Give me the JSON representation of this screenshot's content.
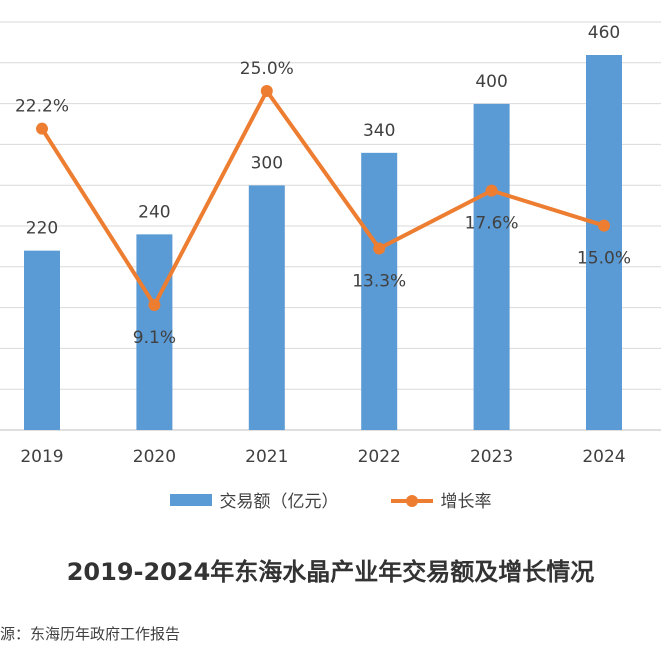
{
  "chart_data": {
    "type": "bar+line",
    "categories": [
      "2019",
      "2020",
      "2021",
      "2022",
      "2023",
      "2024"
    ],
    "series": [
      {
        "name": "交易额（亿元）",
        "type": "bar",
        "values": [
          220,
          240,
          300,
          340,
          400,
          460
        ],
        "labels": [
          "220",
          "240",
          "300",
          "340",
          "400",
          "460"
        ]
      },
      {
        "name": "增长率",
        "type": "line",
        "values": [
          22.2,
          9.1,
          25.0,
          13.3,
          17.6,
          15.0
        ],
        "labels": [
          "22.2%",
          "9.1%",
          "25.0%",
          "13.3%",
          "17.6%",
          "15.0%"
        ]
      }
    ],
    "bar_ylim": [
      0,
      460
    ],
    "line_ylim": [
      0,
      30
    ],
    "grid": true,
    "legend": "bottom",
    "title": "2019-2024年东海水晶产业年交易额及增长情况"
  },
  "colors": {
    "bar": "#5B9BD5",
    "line": "#ED7D31",
    "grid": "#D9D9D9",
    "text": "#404040"
  },
  "caption": "2019-2024年东海水晶产业年交易额及增长情况",
  "source": "源：东海历年政府工作报告"
}
